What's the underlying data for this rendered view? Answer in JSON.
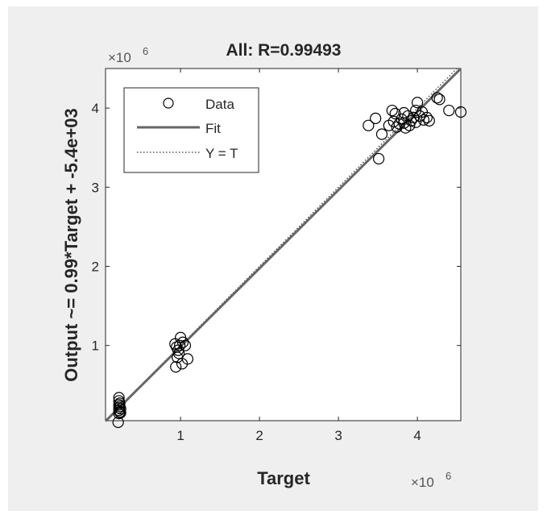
{
  "chart_data": {
    "type": "scatter",
    "title": "All: R=0.99493",
    "xlabel": "Target",
    "ylabel": "Output ~= 0.99*Target + -5.4e+03",
    "x_exponent_label": "×10",
    "x_exponent_power": "6",
    "y_exponent_label": "×10",
    "y_exponent_power": "6",
    "xlim": [
      0.05,
      4.55
    ],
    "ylim": [
      0.05,
      4.5
    ],
    "x_ticks": [
      1,
      2,
      3,
      4
    ],
    "y_ticks": [
      1,
      2,
      3,
      4
    ],
    "x_tick_labels": [
      "1",
      "2",
      "3",
      "4"
    ],
    "y_tick_labels": [
      "1",
      "2",
      "3",
      "4"
    ],
    "grid": false,
    "legend_position": "top-left",
    "legend": [
      {
        "label": "Data",
        "marker": "circle"
      },
      {
        "label": "Fit",
        "style": "solid"
      },
      {
        "label": "Y = T",
        "style": "dotted"
      }
    ],
    "fit": {
      "slope": 0.99,
      "intercept": -0.0054
    },
    "series": [
      {
        "name": "Data",
        "points": [
          [
            0.22,
            0.34
          ],
          [
            0.22,
            0.3
          ],
          [
            0.23,
            0.27
          ],
          [
            0.22,
            0.25
          ],
          [
            0.23,
            0.23
          ],
          [
            0.22,
            0.21
          ],
          [
            0.24,
            0.2
          ],
          [
            0.22,
            0.18
          ],
          [
            0.23,
            0.16
          ],
          [
            0.24,
            0.15
          ],
          [
            0.22,
            0.14
          ],
          [
            0.21,
            0.03
          ],
          [
            0.93,
            1.02
          ],
          [
            0.95,
            0.98
          ],
          [
            0.97,
            0.94
          ],
          [
            0.98,
            0.9
          ],
          [
            1.0,
            1.1
          ],
          [
            1.03,
            1.04
          ],
          [
            1.06,
            1.0
          ],
          [
            0.96,
            0.85
          ],
          [
            0.94,
            0.73
          ],
          [
            1.02,
            0.77
          ],
          [
            1.09,
            0.83
          ],
          [
            0.99,
            1.0
          ],
          [
            3.38,
            3.78
          ],
          [
            3.47,
            3.87
          ],
          [
            3.51,
            3.36
          ],
          [
            3.55,
            3.67
          ],
          [
            3.64,
            3.78
          ],
          [
            3.68,
            3.97
          ],
          [
            3.7,
            3.83
          ],
          [
            3.72,
            3.93
          ],
          [
            3.74,
            3.76
          ],
          [
            3.77,
            3.8
          ],
          [
            3.8,
            3.86
          ],
          [
            3.83,
            3.81
          ],
          [
            3.85,
            3.75
          ],
          [
            3.88,
            3.9
          ],
          [
            3.9,
            3.78
          ],
          [
            3.92,
            3.84
          ],
          [
            3.95,
            3.88
          ],
          [
            3.98,
            3.82
          ],
          [
            4.0,
            4.07
          ],
          [
            4.03,
            3.9
          ],
          [
            4.06,
            3.95
          ],
          [
            4.08,
            3.85
          ],
          [
            4.12,
            3.88
          ],
          [
            4.15,
            3.84
          ],
          [
            4.25,
            4.13
          ],
          [
            4.28,
            4.11
          ],
          [
            4.4,
            3.97
          ],
          [
            4.55,
            3.95
          ],
          [
            3.98,
            3.97
          ],
          [
            3.83,
            3.94
          ]
        ]
      }
    ]
  }
}
